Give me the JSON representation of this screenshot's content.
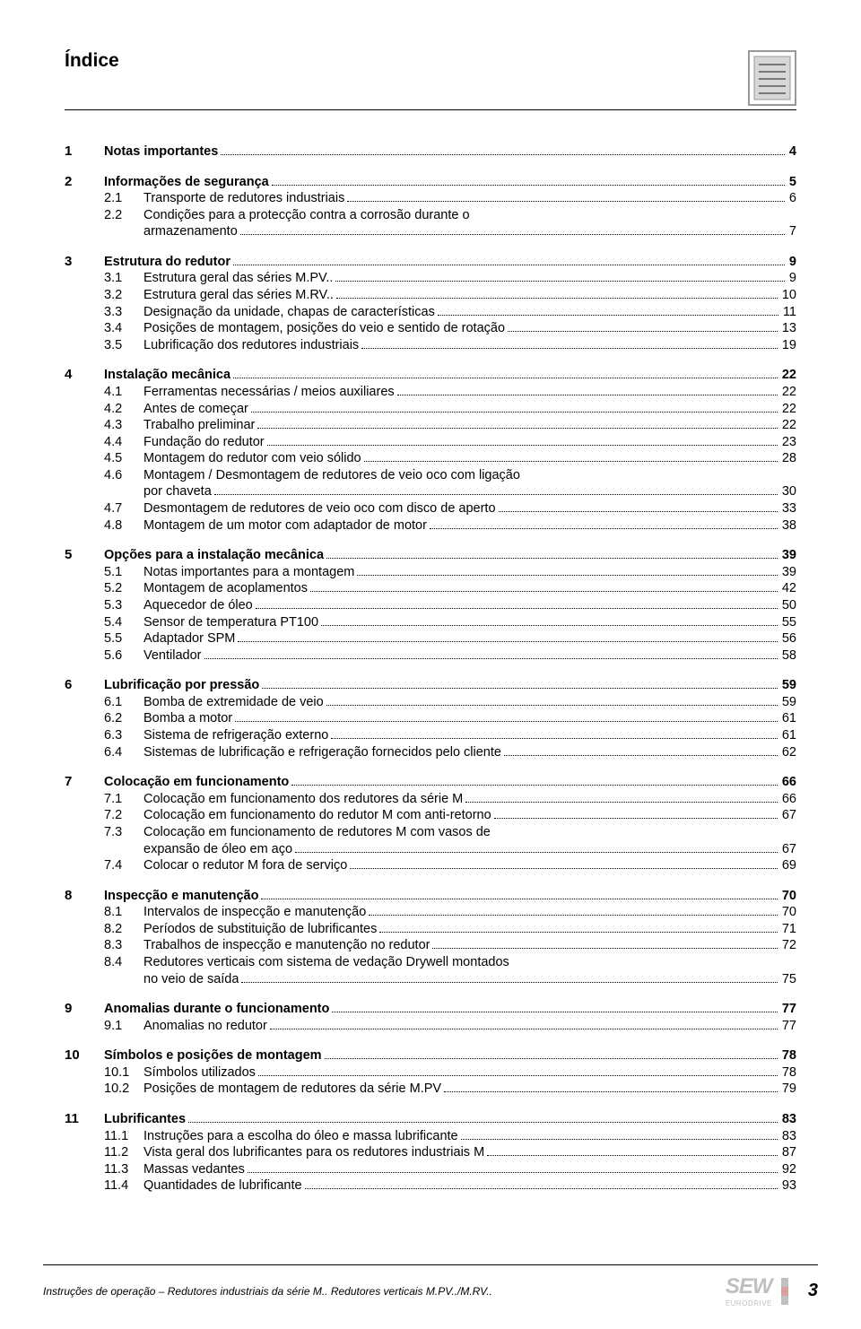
{
  "title": "Índice",
  "footer": {
    "text": "Instruções de operação – Redutores industriais da série M.. Redutores verticais M.PV../M.RV..",
    "page": "3",
    "logo_main": "SEW",
    "logo_sub": "EURODRIVE"
  },
  "sections": [
    {
      "num": "1",
      "label": "Notas importantes",
      "page": "4",
      "items": []
    },
    {
      "num": "2",
      "label": "Informações de segurança",
      "page": "5",
      "items": [
        {
          "num": "2.1",
          "label": "Transporte de redutores industriais",
          "page": "6"
        },
        {
          "num": "2.2",
          "label": "Condições para a protecção contra a corrosão durante o",
          "cont": "armazenamento",
          "page": "7"
        }
      ]
    },
    {
      "num": "3",
      "label": "Estrutura do redutor",
      "page": "9",
      "items": [
        {
          "num": "3.1",
          "label": "Estrutura geral das séries M.PV..",
          "page": "9"
        },
        {
          "num": "3.2",
          "label": "Estrutura geral das séries M.RV..",
          "page": "10"
        },
        {
          "num": "3.3",
          "label": "Designação da unidade, chapas de características",
          "page": "11"
        },
        {
          "num": "3.4",
          "label": "Posições de montagem, posições do veio e sentido de rotação",
          "page": "13"
        },
        {
          "num": "3.5",
          "label": "Lubrificação dos redutores industriais",
          "page": "19"
        }
      ]
    },
    {
      "num": "4",
      "label": "Instalação mecânica",
      "page": "22",
      "items": [
        {
          "num": "4.1",
          "label": "Ferramentas necessárias / meios auxiliares",
          "page": "22"
        },
        {
          "num": "4.2",
          "label": "Antes de começar",
          "page": "22"
        },
        {
          "num": "4.3",
          "label": "Trabalho preliminar",
          "page": "22"
        },
        {
          "num": "4.4",
          "label": "Fundação do redutor",
          "page": "23"
        },
        {
          "num": "4.5",
          "label": "Montagem do redutor com veio sólido",
          "page": "28"
        },
        {
          "num": "4.6",
          "label": "Montagem / Desmontagem de redutores de veio oco com ligação",
          "cont": "por chaveta",
          "page": "30"
        },
        {
          "num": "4.7",
          "label": "Desmontagem de redutores de veio oco com disco de aperto",
          "page": "33"
        },
        {
          "num": "4.8",
          "label": "Montagem de um motor com adaptador de motor",
          "page": "38"
        }
      ]
    },
    {
      "num": "5",
      "label": "Opções para a instalação mecânica",
      "page": "39",
      "items": [
        {
          "num": "5.1",
          "label": "Notas importantes para a montagem",
          "page": "39"
        },
        {
          "num": "5.2",
          "label": "Montagem de acoplamentos",
          "page": "42"
        },
        {
          "num": "5.3",
          "label": "Aquecedor de óleo",
          "page": "50"
        },
        {
          "num": "5.4",
          "label": "Sensor de temperatura PT100",
          "page": "55"
        },
        {
          "num": "5.5",
          "label": "Adaptador SPM",
          "page": "56"
        },
        {
          "num": "5.6",
          "label": "Ventilador",
          "page": "58"
        }
      ]
    },
    {
      "num": "6",
      "label": "Lubrificação por pressão",
      "page": "59",
      "items": [
        {
          "num": "6.1",
          "label": "Bomba de extremidade de veio",
          "page": "59"
        },
        {
          "num": "6.2",
          "label": "Bomba a motor ",
          "page": "61"
        },
        {
          "num": "6.3",
          "label": "Sistema de refrigeração externo",
          "page": "61"
        },
        {
          "num": "6.4",
          "label": "Sistemas de lubrificação e refrigeração fornecidos pelo cliente",
          "page": "62"
        }
      ]
    },
    {
      "num": "7",
      "label": "Colocação em funcionamento",
      "page": "66",
      "items": [
        {
          "num": "7.1",
          "label": "Colocação em funcionamento dos redutores da série M",
          "page": "66"
        },
        {
          "num": "7.2",
          "label": "Colocação em funcionamento do redutor M com anti-retorno",
          "page": "67"
        },
        {
          "num": "7.3",
          "label": "Colocação em funcionamento de redutores M com vasos de",
          "cont": "expansão de óleo em aço",
          "page": "67"
        },
        {
          "num": "7.4",
          "label": "Colocar o redutor M fora de serviço",
          "page": "69"
        }
      ]
    },
    {
      "num": "8",
      "label": "Inspecção e manutenção",
      "page": "70",
      "items": [
        {
          "num": "8.1",
          "label": "Intervalos de inspecção e manutenção",
          "page": "70"
        },
        {
          "num": "8.2",
          "label": "Períodos de substituição de lubrificantes",
          "page": "71"
        },
        {
          "num": "8.3",
          "label": "Trabalhos de inspecção e manutenção no redutor",
          "page": "72"
        },
        {
          "num": "8.4",
          "label": "Redutores verticais com sistema de vedação Drywell montados",
          "cont": "no veio de saída",
          "page": "75"
        }
      ]
    },
    {
      "num": "9",
      "label": "Anomalias durante o funcionamento",
      "page": "77",
      "items": [
        {
          "num": "9.1",
          "label": "Anomalias no redutor",
          "page": "77"
        }
      ]
    },
    {
      "num": "10",
      "label": "Símbolos e posições de montagem",
      "page": "78",
      "items": [
        {
          "num": "10.1",
          "label": "Símbolos utilizados",
          "page": "78"
        },
        {
          "num": "10.2",
          "label": "Posições de montagem de redutores da série M.PV",
          "page": "79"
        }
      ]
    },
    {
      "num": "11",
      "label": "Lubrificantes",
      "page": "83",
      "items": [
        {
          "num": "11.1",
          "label": "Instruções para a escolha do óleo e massa lubrificante",
          "page": "83"
        },
        {
          "num": "11.2",
          "label": "Vista geral dos lubrificantes para os redutores industriais M",
          "page": "87"
        },
        {
          "num": "11.3",
          "label": "Massas vedantes",
          "page": "92"
        },
        {
          "num": "11.4",
          "label": "Quantidades de lubrificante",
          "page": "93"
        }
      ]
    }
  ]
}
